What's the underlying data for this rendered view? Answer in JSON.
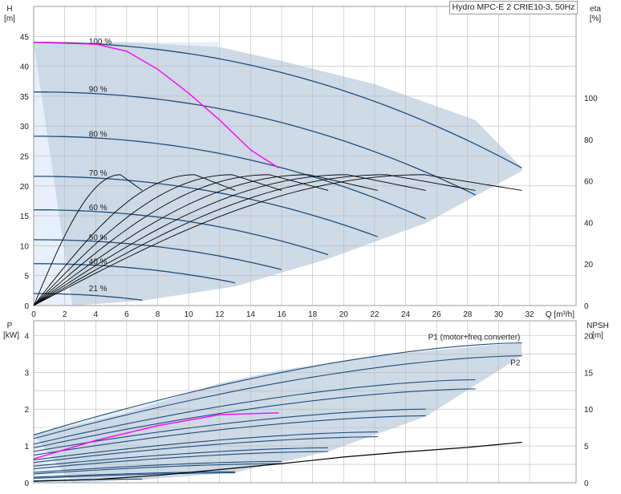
{
  "title": "Hydro MPC-E 2 CRIE10-3, 50Hz",
  "colors": {
    "curve": "#1f4e7a",
    "highlight": "#ff00ff",
    "efficiency": "#000000",
    "operating_area": "#c9d6e3",
    "light_area": "#e6effa",
    "grid": "#b8b8b8"
  },
  "chart_data": [
    {
      "type": "line",
      "name": "head",
      "xlabel": "Q [m³/h]",
      "ylabel_left": "H",
      "ylabel_left_unit": "[m]",
      "ylabel_right": "eta",
      "ylabel_right_unit": "[%]",
      "xlim": [
        0,
        35
      ],
      "ylim_left": [
        0,
        50
      ],
      "ylim_right": [
        0,
        144
      ],
      "x_ticks": [
        0,
        2,
        4,
        6,
        8,
        10,
        12,
        14,
        16,
        18,
        20,
        22,
        24,
        26,
        28,
        30,
        32
      ],
      "y_ticks_left": [
        0,
        5,
        10,
        15,
        20,
        25,
        30,
        35,
        40,
        45
      ],
      "y_ticks_right": [
        0,
        20,
        40,
        60,
        80,
        100
      ],
      "grid": true,
      "speed_labels": [
        {
          "text": "100 %",
          "x": 1.8,
          "y": 44
        },
        {
          "text": "90 %",
          "x": 1.8,
          "y": 36
        },
        {
          "text": "80 %",
          "x": 1.8,
          "y": 28.5
        },
        {
          "text": "70 %",
          "x": 1.8,
          "y": 22
        },
        {
          "text": "60 %",
          "x": 1.8,
          "y": 16.2
        },
        {
          "text": "50 %",
          "x": 1.8,
          "y": 11.2
        },
        {
          "text": "40 %",
          "x": 1.8,
          "y": 7.2
        },
        {
          "text": "21 %",
          "x": 1.8,
          "y": 2.7
        }
      ],
      "curves": [
        {
          "shutoff": 44,
          "qmax": 31.5,
          "hend": 23
        },
        {
          "shutoff": 35.7,
          "qmax": 28.5,
          "hend": 18.5
        },
        {
          "shutoff": 28.3,
          "qmax": 25.3,
          "hend": 14.5
        },
        {
          "shutoff": 21.6,
          "qmax": 22.2,
          "hend": 11.5
        },
        {
          "shutoff": 16,
          "qmax": 19,
          "hend": 8.5
        },
        {
          "shutoff": 11,
          "qmax": 16,
          "hend": 6
        },
        {
          "shutoff": 7,
          "qmax": 13,
          "hend": 3.8
        },
        {
          "shutoff": 2,
          "qmax": 7,
          "hend": 0.9
        }
      ],
      "highlight_curve": {
        "shutoff": 44,
        "x": [
          0,
          4,
          6,
          8,
          10,
          12,
          14,
          15.8
        ],
        "y": [
          44,
          43.7,
          42.5,
          39.5,
          35.5,
          31,
          26,
          23
        ]
      },
      "efficiency_qmax": [
        31.5,
        28.5,
        25.3,
        22.2,
        19,
        16,
        13,
        7
      ],
      "efficiency_peak": 63,
      "operating_area": {
        "x": [
          0,
          6,
          12,
          15.8,
          22,
          28.5,
          31.5,
          31.5,
          25.3,
          19,
          13,
          7,
          2.5
        ],
        "y": [
          44,
          44,
          43.2,
          41,
          37,
          31,
          23,
          22.5,
          13.8,
          7.8,
          3.2,
          0.8,
          0
        ]
      }
    },
    {
      "type": "line",
      "name": "power",
      "xlabel": "",
      "ylabel_left": "P",
      "ylabel_left_unit": "[kW]",
      "ylabel_right": "NPSH",
      "ylabel_right_unit": "[m]",
      "xlim": [
        0,
        35
      ],
      "ylim_left": [
        0,
        4.4
      ],
      "ylim_right": [
        0,
        22
      ],
      "y_ticks_left": [
        0,
        1,
        2,
        3,
        4
      ],
      "y_ticks_right": [
        0,
        5,
        10,
        15,
        20
      ],
      "grid": true,
      "series_labels": [
        "P1 (motor+freq.converter)",
        "P2"
      ],
      "power_curves": [
        {
          "p0": 1.3,
          "qmax": 31.5,
          "pend": 3.8
        },
        {
          "p0": 1.2,
          "qmax": 31.5,
          "pend": 3.45
        },
        {
          "p0": 1.05,
          "qmax": 28.5,
          "pend": 2.8
        },
        {
          "p0": 0.95,
          "qmax": 28.5,
          "pend": 2.55
        },
        {
          "p0": 0.85,
          "qmax": 25.3,
          "pend": 2.0
        },
        {
          "p0": 0.75,
          "qmax": 25.3,
          "pend": 1.82
        },
        {
          "p0": 0.62,
          "qmax": 22.2,
          "pend": 1.38
        },
        {
          "p0": 0.55,
          "qmax": 22.2,
          "pend": 1.25
        },
        {
          "p0": 0.45,
          "qmax": 19,
          "pend": 0.95
        },
        {
          "p0": 0.38,
          "qmax": 19,
          "pend": 0.85
        },
        {
          "p0": 0.28,
          "qmax": 16,
          "pend": 0.58
        },
        {
          "p0": 0.24,
          "qmax": 16,
          "pend": 0.52
        },
        {
          "p0": 0.15,
          "qmax": 13,
          "pend": 0.3
        },
        {
          "p0": 0.12,
          "qmax": 13,
          "pend": 0.27
        },
        {
          "p0": 0.05,
          "qmax": 7,
          "pend": 0.1
        }
      ],
      "highlight_curve": {
        "x": [
          0,
          4,
          8,
          12,
          15.8
        ],
        "y": [
          0.65,
          1.15,
          1.55,
          1.85,
          1.9
        ]
      },
      "npsh": {
        "x": [
          0,
          4,
          8,
          12,
          16,
          20,
          24,
          28,
          31.5
        ],
        "y": [
          0.2,
          0.45,
          1,
          1.8,
          2.6,
          3.5,
          4.2,
          4.8,
          5.5
        ]
      },
      "operating_area": {
        "x": [
          0,
          6,
          12,
          15.8,
          22,
          28.5,
          31.5,
          31.5,
          25.3,
          19,
          13,
          7,
          2.5
        ],
        "y": [
          1.3,
          1.9,
          2.7,
          3.05,
          3.45,
          3.7,
          3.8,
          3.45,
          1.8,
          0.85,
          0.28,
          0.08,
          0
        ]
      }
    }
  ]
}
